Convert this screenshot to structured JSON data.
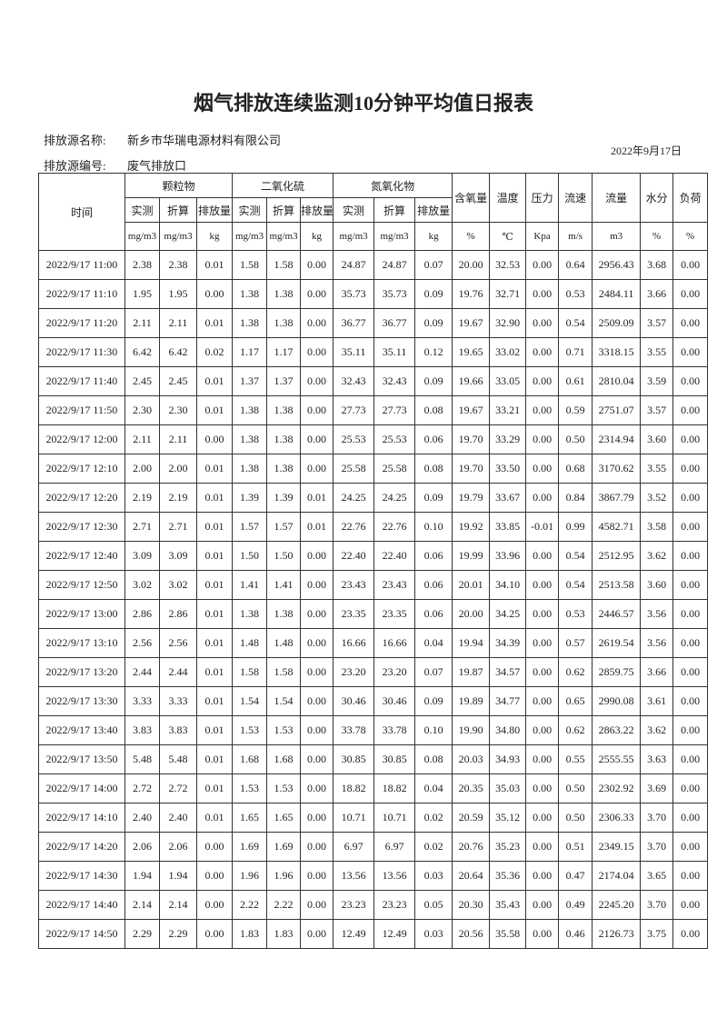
{
  "title": "烟气排放连续监测10分钟平均值日报表",
  "info": {
    "source_name_label": "排放源名称:",
    "source_name": "新乡市华瑞电源材料有限公司",
    "date": "2022年9月17日",
    "source_id_label": "排放源编号:",
    "source_id": "废气排放口"
  },
  "table": {
    "time_header": "时间",
    "groups": [
      "颗粒物",
      "二氧化硫",
      "氮氧化物"
    ],
    "sub_columns": [
      "实测",
      "折算",
      "排放量",
      "实测",
      "折算",
      "排放量",
      "实测",
      "折算",
      "排放量"
    ],
    "single_columns": [
      "含氧量",
      "温度",
      "压力",
      "流速",
      "流量",
      "水分",
      "负荷"
    ],
    "units": [
      "mg/m3",
      "mg/m3",
      "kg",
      "mg/m3",
      "mg/m3",
      "kg",
      "mg/m3",
      "mg/m3",
      "kg",
      "%",
      "℃",
      "Kpa",
      "m/s",
      "m3",
      "%",
      "%"
    ],
    "rows": [
      [
        "2022/9/17 11:00",
        "2.38",
        "2.38",
        "0.01",
        "1.58",
        "1.58",
        "0.00",
        "24.87",
        "24.87",
        "0.07",
        "20.00",
        "32.53",
        "0.00",
        "0.64",
        "2956.43",
        "3.68",
        "0.00"
      ],
      [
        "2022/9/17 11:10",
        "1.95",
        "1.95",
        "0.00",
        "1.38",
        "1.38",
        "0.00",
        "35.73",
        "35.73",
        "0.09",
        "19.76",
        "32.71",
        "0.00",
        "0.53",
        "2484.11",
        "3.66",
        "0.00"
      ],
      [
        "2022/9/17 11:20",
        "2.11",
        "2.11",
        "0.01",
        "1.38",
        "1.38",
        "0.00",
        "36.77",
        "36.77",
        "0.09",
        "19.67",
        "32.90",
        "0.00",
        "0.54",
        "2509.09",
        "3.57",
        "0.00"
      ],
      [
        "2022/9/17 11:30",
        "6.42",
        "6.42",
        "0.02",
        "1.17",
        "1.17",
        "0.00",
        "35.11",
        "35.11",
        "0.12",
        "19.65",
        "33.02",
        "0.00",
        "0.71",
        "3318.15",
        "3.55",
        "0.00"
      ],
      [
        "2022/9/17 11:40",
        "2.45",
        "2.45",
        "0.01",
        "1.37",
        "1.37",
        "0.00",
        "32.43",
        "32.43",
        "0.09",
        "19.66",
        "33.05",
        "0.00",
        "0.61",
        "2810.04",
        "3.59",
        "0.00"
      ],
      [
        "2022/9/17 11:50",
        "2.30",
        "2.30",
        "0.01",
        "1.38",
        "1.38",
        "0.00",
        "27.73",
        "27.73",
        "0.08",
        "19.67",
        "33.21",
        "0.00",
        "0.59",
        "2751.07",
        "3.57",
        "0.00"
      ],
      [
        "2022/9/17 12:00",
        "2.11",
        "2.11",
        "0.00",
        "1.38",
        "1.38",
        "0.00",
        "25.53",
        "25.53",
        "0.06",
        "19.70",
        "33.29",
        "0.00",
        "0.50",
        "2314.94",
        "3.60",
        "0.00"
      ],
      [
        "2022/9/17 12:10",
        "2.00",
        "2.00",
        "0.01",
        "1.38",
        "1.38",
        "0.00",
        "25.58",
        "25.58",
        "0.08",
        "19.70",
        "33.50",
        "0.00",
        "0.68",
        "3170.62",
        "3.55",
        "0.00"
      ],
      [
        "2022/9/17 12:20",
        "2.19",
        "2.19",
        "0.01",
        "1.39",
        "1.39",
        "0.01",
        "24.25",
        "24.25",
        "0.09",
        "19.79",
        "33.67",
        "0.00",
        "0.84",
        "3867.79",
        "3.52",
        "0.00"
      ],
      [
        "2022/9/17 12:30",
        "2.71",
        "2.71",
        "0.01",
        "1.57",
        "1.57",
        "0.01",
        "22.76",
        "22.76",
        "0.10",
        "19.92",
        "33.85",
        "-0.01",
        "0.99",
        "4582.71",
        "3.58",
        "0.00"
      ],
      [
        "2022/9/17 12:40",
        "3.09",
        "3.09",
        "0.01",
        "1.50",
        "1.50",
        "0.00",
        "22.40",
        "22.40",
        "0.06",
        "19.99",
        "33.96",
        "0.00",
        "0.54",
        "2512.95",
        "3.62",
        "0.00"
      ],
      [
        "2022/9/17 12:50",
        "3.02",
        "3.02",
        "0.01",
        "1.41",
        "1.41",
        "0.00",
        "23.43",
        "23.43",
        "0.06",
        "20.01",
        "34.10",
        "0.00",
        "0.54",
        "2513.58",
        "3.60",
        "0.00"
      ],
      [
        "2022/9/17 13:00",
        "2.86",
        "2.86",
        "0.01",
        "1.38",
        "1.38",
        "0.00",
        "23.35",
        "23.35",
        "0.06",
        "20.00",
        "34.25",
        "0.00",
        "0.53",
        "2446.57",
        "3.56",
        "0.00"
      ],
      [
        "2022/9/17 13:10",
        "2.56",
        "2.56",
        "0.01",
        "1.48",
        "1.48",
        "0.00",
        "16.66",
        "16.66",
        "0.04",
        "19.94",
        "34.39",
        "0.00",
        "0.57",
        "2619.54",
        "3.56",
        "0.00"
      ],
      [
        "2022/9/17 13:20",
        "2.44",
        "2.44",
        "0.01",
        "1.58",
        "1.58",
        "0.00",
        "23.20",
        "23.20",
        "0.07",
        "19.87",
        "34.57",
        "0.00",
        "0.62",
        "2859.75",
        "3.66",
        "0.00"
      ],
      [
        "2022/9/17 13:30",
        "3.33",
        "3.33",
        "0.01",
        "1.54",
        "1.54",
        "0.00",
        "30.46",
        "30.46",
        "0.09",
        "19.89",
        "34.77",
        "0.00",
        "0.65",
        "2990.08",
        "3.61",
        "0.00"
      ],
      [
        "2022/9/17 13:40",
        "3.83",
        "3.83",
        "0.01",
        "1.53",
        "1.53",
        "0.00",
        "33.78",
        "33.78",
        "0.10",
        "19.90",
        "34.80",
        "0.00",
        "0.62",
        "2863.22",
        "3.62",
        "0.00"
      ],
      [
        "2022/9/17 13:50",
        "5.48",
        "5.48",
        "0.01",
        "1.68",
        "1.68",
        "0.00",
        "30.85",
        "30.85",
        "0.08",
        "20.03",
        "34.93",
        "0.00",
        "0.55",
        "2555.55",
        "3.63",
        "0.00"
      ],
      [
        "2022/9/17 14:00",
        "2.72",
        "2.72",
        "0.01",
        "1.53",
        "1.53",
        "0.00",
        "18.82",
        "18.82",
        "0.04",
        "20.35",
        "35.03",
        "0.00",
        "0.50",
        "2302.92",
        "3.69",
        "0.00"
      ],
      [
        "2022/9/17 14:10",
        "2.40",
        "2.40",
        "0.01",
        "1.65",
        "1.65",
        "0.00",
        "10.71",
        "10.71",
        "0.02",
        "20.59",
        "35.12",
        "0.00",
        "0.50",
        "2306.33",
        "3.70",
        "0.00"
      ],
      [
        "2022/9/17 14:20",
        "2.06",
        "2.06",
        "0.00",
        "1.69",
        "1.69",
        "0.00",
        "6.97",
        "6.97",
        "0.02",
        "20.76",
        "35.23",
        "0.00",
        "0.51",
        "2349.15",
        "3.70",
        "0.00"
      ],
      [
        "2022/9/17 14:30",
        "1.94",
        "1.94",
        "0.00",
        "1.96",
        "1.96",
        "0.00",
        "13.56",
        "13.56",
        "0.03",
        "20.64",
        "35.36",
        "0.00",
        "0.47",
        "2174.04",
        "3.65",
        "0.00"
      ],
      [
        "2022/9/17 14:40",
        "2.14",
        "2.14",
        "0.00",
        "2.22",
        "2.22",
        "0.00",
        "23.23",
        "23.23",
        "0.05",
        "20.30",
        "35.43",
        "0.00",
        "0.49",
        "2245.20",
        "3.70",
        "0.00"
      ],
      [
        "2022/9/17 14:50",
        "2.29",
        "2.29",
        "0.00",
        "1.83",
        "1.83",
        "0.00",
        "12.49",
        "12.49",
        "0.03",
        "20.56",
        "35.58",
        "0.00",
        "0.46",
        "2126.73",
        "3.75",
        "0.00"
      ]
    ]
  }
}
